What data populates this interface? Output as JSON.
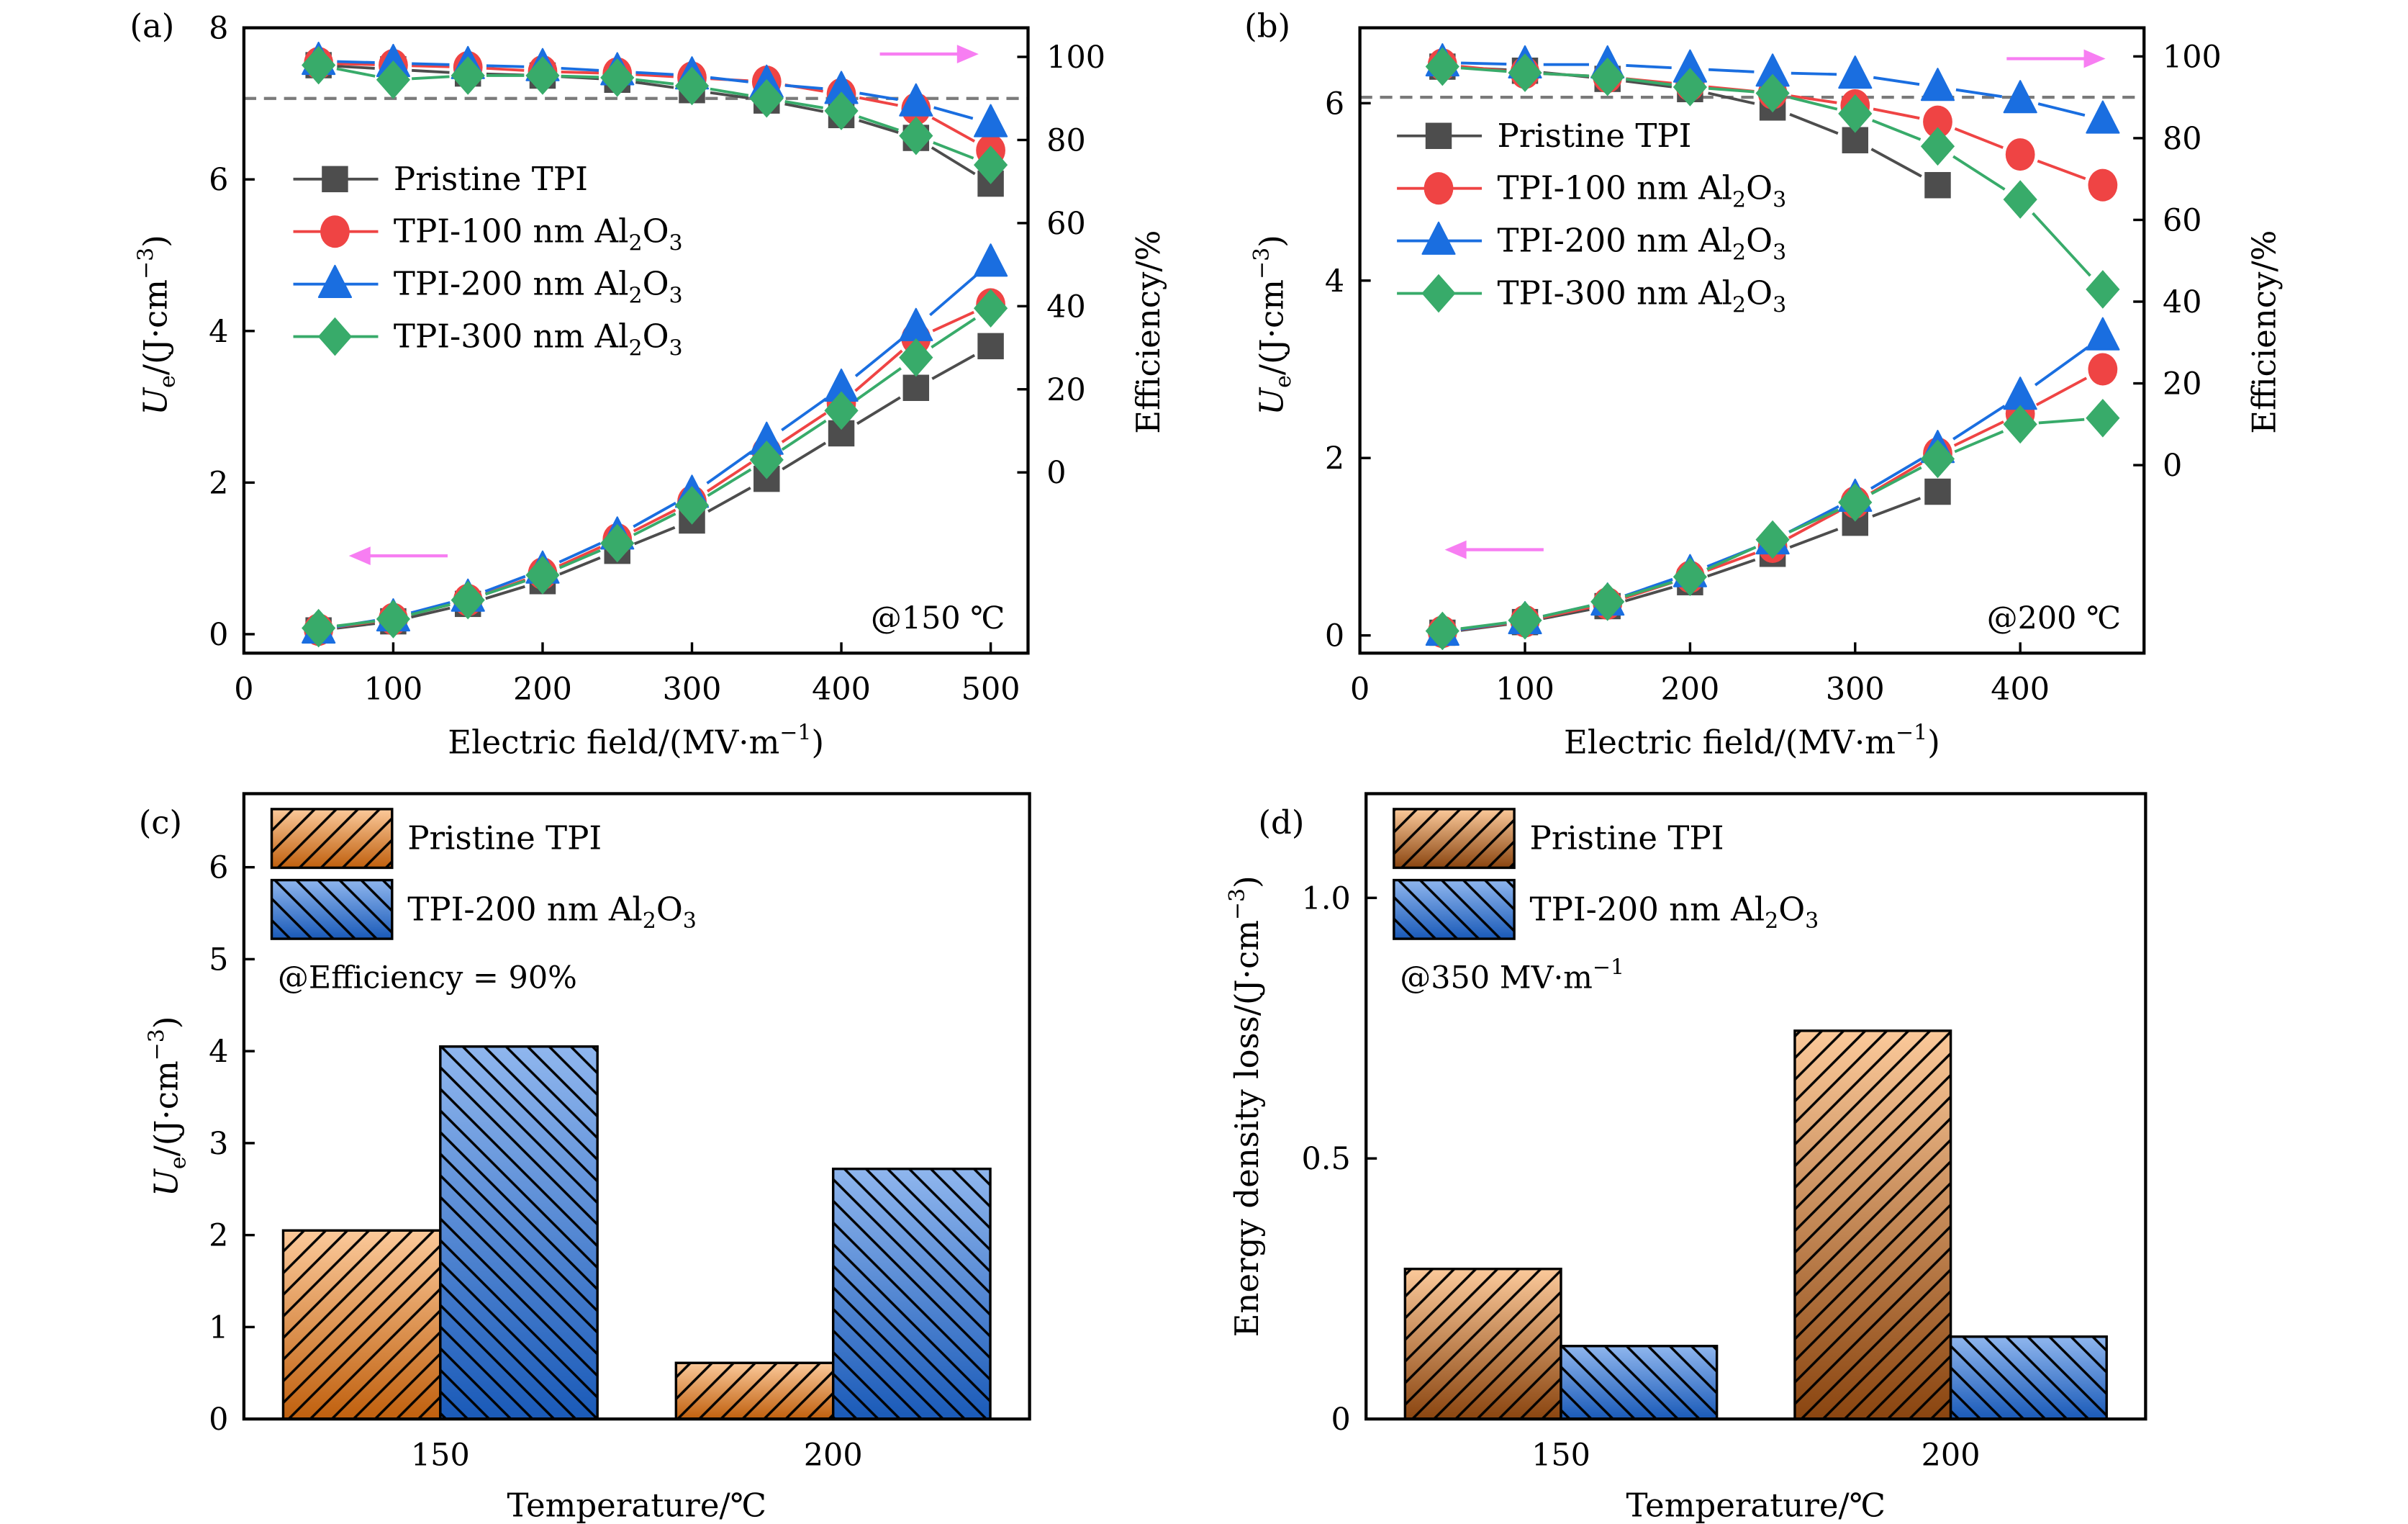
{
  "figure": {
    "colors": {
      "pristine": "#4d4d4d",
      "tpi100": "#ef4444",
      "tpi200": "#1a6ee0",
      "tpi300": "#38ab6a",
      "arrow": "#f77ef2",
      "dashed_reference": "#7a7a7a",
      "bar_pristine_top": "#fbc99a",
      "bar_pristine_bottom_c": "#c0600e",
      "bar_pristine_bottom_d": "#8a4510",
      "bar_tpi200_top": "#8fb6ee",
      "bar_tpi200_bottom": "#1a5ab8"
    }
  },
  "chart_data": [
    {
      "id": "a",
      "panel_label": "(a)",
      "type": "line",
      "title": "",
      "annotation": "@150 ℃",
      "xlabel": "Electric field/(MV·m⁻¹)",
      "ylabel": "Ue/(J·cm⁻³)",
      "ylabel_parts": {
        "main": "U",
        "sub": "e",
        "rest": "/(J·cm",
        "sup": "−3",
        "close": ")"
      },
      "y2label": "Efficiency/%",
      "xlim": [
        0,
        525
      ],
      "ylim": [
        -0.25,
        8
      ],
      "y2lim": [
        -43.5,
        107
      ],
      "xticks": [
        0,
        100,
        200,
        300,
        400,
        500
      ],
      "yticks": [
        0,
        2,
        4,
        6,
        8
      ],
      "y2ticks": [
        0,
        20,
        40,
        60,
        80,
        100
      ],
      "reference_line": {
        "axis": "y2",
        "value": 90,
        "style": "dashed"
      },
      "legend": {
        "placement": "upper-left",
        "entries": [
          {
            "key": "pristine",
            "label": "Pristine TPI",
            "marker": "square"
          },
          {
            "key": "tpi100",
            "label_main": "TPI-100 nm Al",
            "label_sub1": "2",
            "label_mid": "O",
            "label_sub2": "3",
            "marker": "circle"
          },
          {
            "key": "tpi200",
            "label_main": "TPI-200 nm Al",
            "label_sub1": "2",
            "label_mid": "O",
            "label_sub2": "3",
            "marker": "triangle"
          },
          {
            "key": "tpi300",
            "label_main": "TPI-300 nm Al",
            "label_sub1": "2",
            "label_mid": "O",
            "label_sub2": "3",
            "marker": "diamond"
          }
        ]
      },
      "arrows": [
        {
          "direction": "left",
          "meaning": "energy density on left axis"
        },
        {
          "direction": "right",
          "meaning": "efficiency on right axis"
        }
      ],
      "x": [
        50,
        100,
        150,
        200,
        250,
        300,
        350,
        400,
        450,
        500
      ],
      "series": [
        {
          "key": "pristine",
          "name": "Pristine TPI",
          "axis": "y",
          "values": [
            0.05,
            0.17,
            0.4,
            0.7,
            1.1,
            1.5,
            2.05,
            2.65,
            3.25,
            3.8
          ]
        },
        {
          "key": "tpi100",
          "name": "TPI-100 nm Al2O3",
          "axis": "y",
          "values": [
            0.06,
            0.2,
            0.45,
            0.8,
            1.25,
            1.75,
            2.4,
            3.05,
            3.9,
            4.35
          ]
        },
        {
          "key": "tpi200",
          "name": "TPI-200 nm Al2O3",
          "axis": "y",
          "values": [
            0.06,
            0.22,
            0.48,
            0.85,
            1.3,
            1.85,
            2.55,
            3.25,
            4.05,
            4.9
          ]
        },
        {
          "key": "tpi300",
          "name": "TPI-300 nm Al2O3",
          "axis": "y",
          "values": [
            0.08,
            0.2,
            0.45,
            0.78,
            1.2,
            1.7,
            2.3,
            2.95,
            3.65,
            4.3
          ]
        },
        {
          "key": "pristine",
          "name": "Pristine TPI (efficiency)",
          "axis": "y2",
          "values": [
            98,
            97,
            96,
            95.5,
            94.5,
            92,
            89.5,
            86,
            80.5,
            69.5
          ]
        },
        {
          "key": "tpi100",
          "name": "TPI-100 nm Al2O3 (efficiency)",
          "axis": "y2",
          "values": [
            98.5,
            98,
            97.5,
            96.5,
            96,
            95,
            94,
            91,
            87.5,
            77.5
          ]
        },
        {
          "key": "tpi200",
          "name": "TPI-200 nm Al2O3 (efficiency)",
          "axis": "y2",
          "values": [
            99,
            98.5,
            98,
            97.5,
            96.5,
            95.5,
            93.5,
            92,
            89,
            84
          ]
        },
        {
          "key": "tpi300",
          "name": "TPI-300 nm Al2O3 (efficiency)",
          "axis": "y2",
          "values": [
            98,
            94.5,
            95.5,
            95.5,
            95,
            93,
            90,
            87,
            81,
            74
          ]
        }
      ]
    },
    {
      "id": "b",
      "panel_label": "(b)",
      "type": "line",
      "title": "",
      "annotation": "@200 ℃",
      "xlabel": "Electric field/(MV·m⁻¹)",
      "ylabel": "Ue/(J·cm⁻³)",
      "ylabel_parts": {
        "main": "U",
        "sub": "e",
        "rest": "/(J·cm",
        "sup": "−3",
        "close": ")"
      },
      "y2label": "Efficiency/%",
      "xlim": [
        0,
        475
      ],
      "ylim": [
        -0.2,
        6.85
      ],
      "y2lim": [
        -46,
        107
      ],
      "xticks": [
        0,
        100,
        200,
        300,
        400
      ],
      "yticks": [
        0,
        2,
        4,
        6
      ],
      "y2ticks": [
        0,
        20,
        40,
        60,
        80,
        100
      ],
      "reference_line": {
        "axis": "y2",
        "value": 90,
        "style": "dashed"
      },
      "legend": {
        "placement": "upper-left",
        "entries": [
          {
            "key": "pristine",
            "label": "Pristine TPI",
            "marker": "square"
          },
          {
            "key": "tpi100",
            "label_main": "TPI-100 nm Al",
            "label_sub1": "2",
            "label_mid": "O",
            "label_sub2": "3",
            "marker": "circle"
          },
          {
            "key": "tpi200",
            "label_main": "TPI-200 nm Al",
            "label_sub1": "2",
            "label_mid": "O",
            "label_sub2": "3",
            "marker": "triangle"
          },
          {
            "key": "tpi300",
            "label_main": "TPI-300 nm Al",
            "label_sub1": "2",
            "label_mid": "O",
            "label_sub2": "3",
            "marker": "diamond"
          }
        ]
      },
      "arrows": [
        {
          "direction": "left",
          "meaning": "energy density on left axis"
        },
        {
          "direction": "right",
          "meaning": "efficiency on right axis"
        }
      ],
      "x": [
        50,
        100,
        150,
        200,
        250,
        300,
        350,
        400,
        450
      ],
      "series": [
        {
          "key": "pristine",
          "name": "Pristine TPI",
          "axis": "y",
          "x": [
            50,
            100,
            150,
            200,
            250,
            300,
            350
          ],
          "values": [
            0.03,
            0.15,
            0.33,
            0.6,
            0.92,
            1.27,
            1.62
          ]
        },
        {
          "key": "tpi100",
          "name": "TPI-100 nm Al2O3",
          "axis": "y",
          "values": [
            0.04,
            0.16,
            0.36,
            0.66,
            1.0,
            1.5,
            2.05,
            2.5,
            3.0
          ]
        },
        {
          "key": "tpi200",
          "name": "TPI-200 nm Al2O3",
          "axis": "y",
          "values": [
            0.04,
            0.17,
            0.38,
            0.7,
            1.07,
            1.55,
            2.1,
            2.7,
            3.37
          ]
        },
        {
          "key": "tpi300",
          "name": "TPI-300 nm Al2O3",
          "axis": "y",
          "values": [
            0.05,
            0.17,
            0.38,
            0.66,
            1.08,
            1.5,
            1.99,
            2.38,
            2.45
          ]
        },
        {
          "key": "pristine",
          "name": "Pristine TPI (efficiency)",
          "axis": "y2",
          "x": [
            50,
            100,
            150,
            200,
            250,
            300,
            350
          ],
          "values": [
            97.5,
            96.5,
            94.5,
            92,
            87.5,
            79.5,
            68.5
          ]
        },
        {
          "key": "tpi100",
          "name": "TPI-100 nm Al2O3 (efficiency)",
          "axis": "y2",
          "values": [
            98,
            96,
            95,
            93,
            91,
            88,
            84,
            76,
            68.5
          ]
        },
        {
          "key": "tpi200",
          "name": "TPI-200 nm Al2O3 (efficiency)",
          "axis": "y2",
          "values": [
            98.5,
            98,
            98,
            97,
            96,
            95.5,
            92.5,
            89.5,
            84.5
          ]
        },
        {
          "key": "tpi300",
          "name": "TPI-300 nm Al2O3 (efficiency)",
          "axis": "y2",
          "values": [
            97.5,
            96,
            95,
            92.5,
            91,
            86,
            78,
            65,
            43
          ]
        }
      ]
    },
    {
      "id": "c",
      "panel_label": "(c)",
      "type": "bar",
      "title": "",
      "annotation": "@Efficiency = 90%",
      "xlabel": "Temperature/℃",
      "ylabel": "Ue/(J·cm⁻³)",
      "ylabel_parts": {
        "main": "U",
        "sub": "e",
        "rest": "/(J·cm",
        "sup": "−3",
        "close": ")"
      },
      "ylim": [
        0,
        6.8
      ],
      "yticks": [
        0,
        1,
        2,
        3,
        4,
        5,
        6
      ],
      "categories": [
        "150",
        "200"
      ],
      "legend": {
        "placement": "upper-left",
        "entries": [
          {
            "key": "pristine",
            "label": "Pristine TPI",
            "hatch": "forward"
          },
          {
            "key": "tpi200",
            "label_main": "TPI-200 nm Al",
            "label_sub1": "2",
            "label_mid": "O",
            "label_sub2": "3",
            "hatch": "backward"
          }
        ]
      },
      "series": [
        {
          "key": "pristine",
          "name": "Pristine TPI",
          "values": [
            2.05,
            0.61
          ]
        },
        {
          "key": "tpi200",
          "name": "TPI-200 nm Al2O3",
          "values": [
            4.05,
            2.72
          ]
        }
      ]
    },
    {
      "id": "d",
      "panel_label": "(d)",
      "type": "bar",
      "title": "",
      "annotation_main": "@350 MV·m",
      "annotation_sup": "−1",
      "xlabel": "Temperature/℃",
      "ylabel": "Energy density loss/(J·cm⁻³)",
      "ylabel_parts": {
        "main": "Energy density loss/(J·cm",
        "sup": "−3",
        "close": ")"
      },
      "ylim": [
        0,
        1.2
      ],
      "yticks": [
        0,
        0.5,
        1.0
      ],
      "ytick_labels": [
        "0",
        "0.5",
        "1.0"
      ],
      "categories": [
        "150",
        "200"
      ],
      "legend": {
        "placement": "upper-left",
        "entries": [
          {
            "key": "pristine",
            "label": "Pristine TPI",
            "hatch": "forward"
          },
          {
            "key": "tpi200",
            "label_main": "TPI-200 nm Al",
            "label_sub1": "2",
            "label_mid": "O",
            "label_sub2": "3",
            "hatch": "backward"
          }
        ]
      },
      "series": [
        {
          "key": "pristine",
          "name": "Pristine TPI",
          "values": [
            0.288,
            0.745
          ]
        },
        {
          "key": "tpi200",
          "name": "TPI-200 nm Al2O3",
          "values": [
            0.14,
            0.158
          ]
        }
      ]
    }
  ],
  "xlabel_parts": {
    "main": "Electric field/(MV·m",
    "sup": "−1",
    "close": ")"
  }
}
